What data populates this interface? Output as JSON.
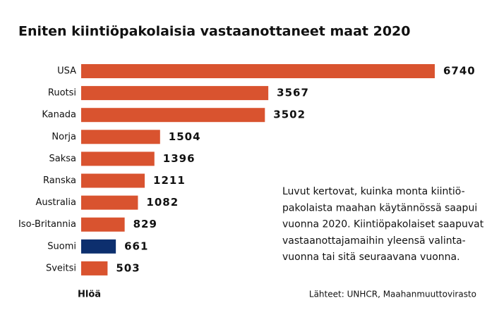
{
  "chart_data": {
    "type": "hbar",
    "title": "Eniten kiintiöpakolaisia vastaanottaneet maat 2020",
    "categories": [
      "USA",
      "Ruotsi",
      "Kanada",
      "Norja",
      "Saksa",
      "Ranska",
      "Australia",
      "Iso-Britannia",
      "Suomi",
      "Sveitsi"
    ],
    "values": [
      6740,
      3567,
      3502,
      1504,
      1396,
      1211,
      1082,
      829,
      661,
      503
    ],
    "colors": [
      "#d9532f",
      "#d9532f",
      "#d9532f",
      "#d9532f",
      "#d9532f",
      "#d9532f",
      "#d9532f",
      "#d9532f",
      "#0d2f6e",
      "#d9532f"
    ],
    "value_label_colors": [
      "#f0a070",
      "#f0a070",
      "#f0a070",
      "#f0a070",
      "#f0a070",
      "#f0a070",
      "#f0a070",
      "#f0a070",
      "#7f9ad0",
      "#f0a070"
    ],
    "unit_label": "Hlöä",
    "note": [
      "Luvut kertovat, kuinka monta kiintiö-",
      "pakolaista maahan käytännössä saapui",
      "vuonna 2020. Kiintiöpakolaiset saapuvat",
      "vastaanottajamaihin yleensä valinta-",
      "vuonna tai sitä seuraavana vuonna."
    ],
    "source": "Lähteet: UNHCR, Maahanmuuttovirasto"
  }
}
